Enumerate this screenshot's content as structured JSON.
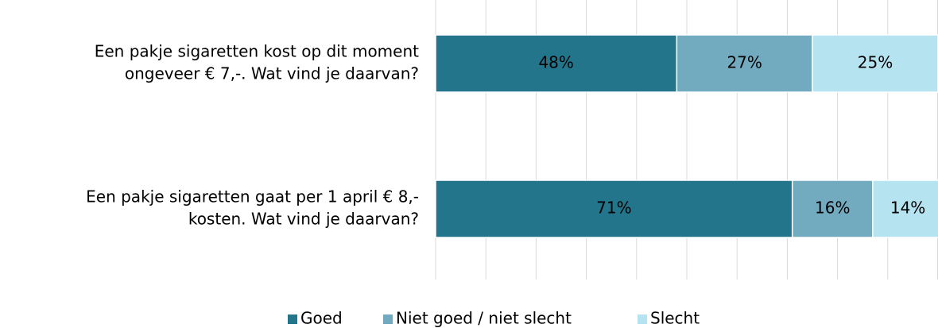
{
  "chart_data": {
    "type": "stacked_barh",
    "categories": [
      [
        "Een pakje sigaretten kost op dit moment",
        "ongeveer € 7,-. Wat vind je daarvan?"
      ],
      [
        "Een pakje sigaretten gaat per 1 april € 8,-",
        "kosten. Wat vind je daarvan?"
      ]
    ],
    "series": [
      {
        "name": "Goed",
        "color": "#23758b",
        "label_color": "#ffffff",
        "values": [
          48,
          71
        ],
        "value_labels": [
          "48%",
          "71%"
        ]
      },
      {
        "name": "Niet goed / niet slecht",
        "color": "#72abbf",
        "label_color": "#ffffff",
        "values": [
          27,
          16
        ],
        "value_labels": [
          "27%",
          "16%"
        ]
      },
      {
        "name": "Slecht",
        "color": "#b5e3ef",
        "label_color": "#000000",
        "values": [
          25,
          14
        ],
        "value_labels": [
          "25%",
          "14%"
        ]
      }
    ],
    "xlim": [
      0,
      100
    ],
    "xticks": [
      0,
      10,
      20,
      30,
      40,
      50,
      60,
      70,
      80,
      90,
      100
    ],
    "grid": true,
    "legend": "bottom"
  }
}
